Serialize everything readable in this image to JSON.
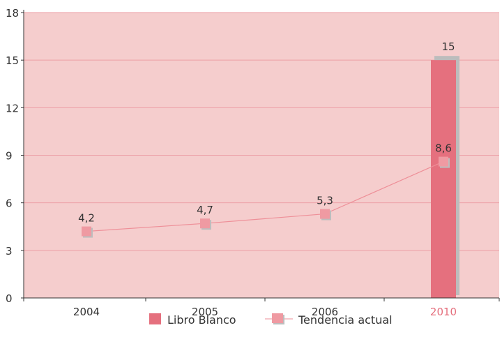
{
  "chart_data": {
    "type": "bar",
    "categories": [
      "2004",
      "2005",
      "2006",
      "2010"
    ],
    "ylim": [
      0,
      18
    ],
    "yticks": [
      0,
      3,
      6,
      9,
      12,
      15,
      18
    ],
    "grid": true,
    "legend_position": "bottom-center",
    "series": [
      {
        "name": "Libro Blanco",
        "kind": "bar",
        "values": [
          null,
          null,
          null,
          15
        ],
        "labels": [
          "",
          "",
          "",
          "15"
        ]
      },
      {
        "name": "Tendencia actual",
        "kind": "line",
        "values": [
          4.2,
          4.7,
          5.3,
          8.6
        ],
        "labels": [
          "4,2",
          "4,7",
          "5,3",
          "8,6"
        ]
      }
    ],
    "highlighted_category": "2010"
  },
  "colors": {
    "plot_background": "#f5cdcd",
    "gridline": "#ec9ea6",
    "axis": "#333333",
    "bar": "#e5707e",
    "bar_shadow": "#bcbcbc",
    "line": "#ee8f98",
    "marker": "#ef9aa2",
    "marker_shadow": "#bdbdbd",
    "text": "#333333",
    "highlight_label": "#e5707e"
  },
  "icons": {
    "bar_legend": "square-swatch",
    "line_legend": "line-with-square-marker"
  }
}
